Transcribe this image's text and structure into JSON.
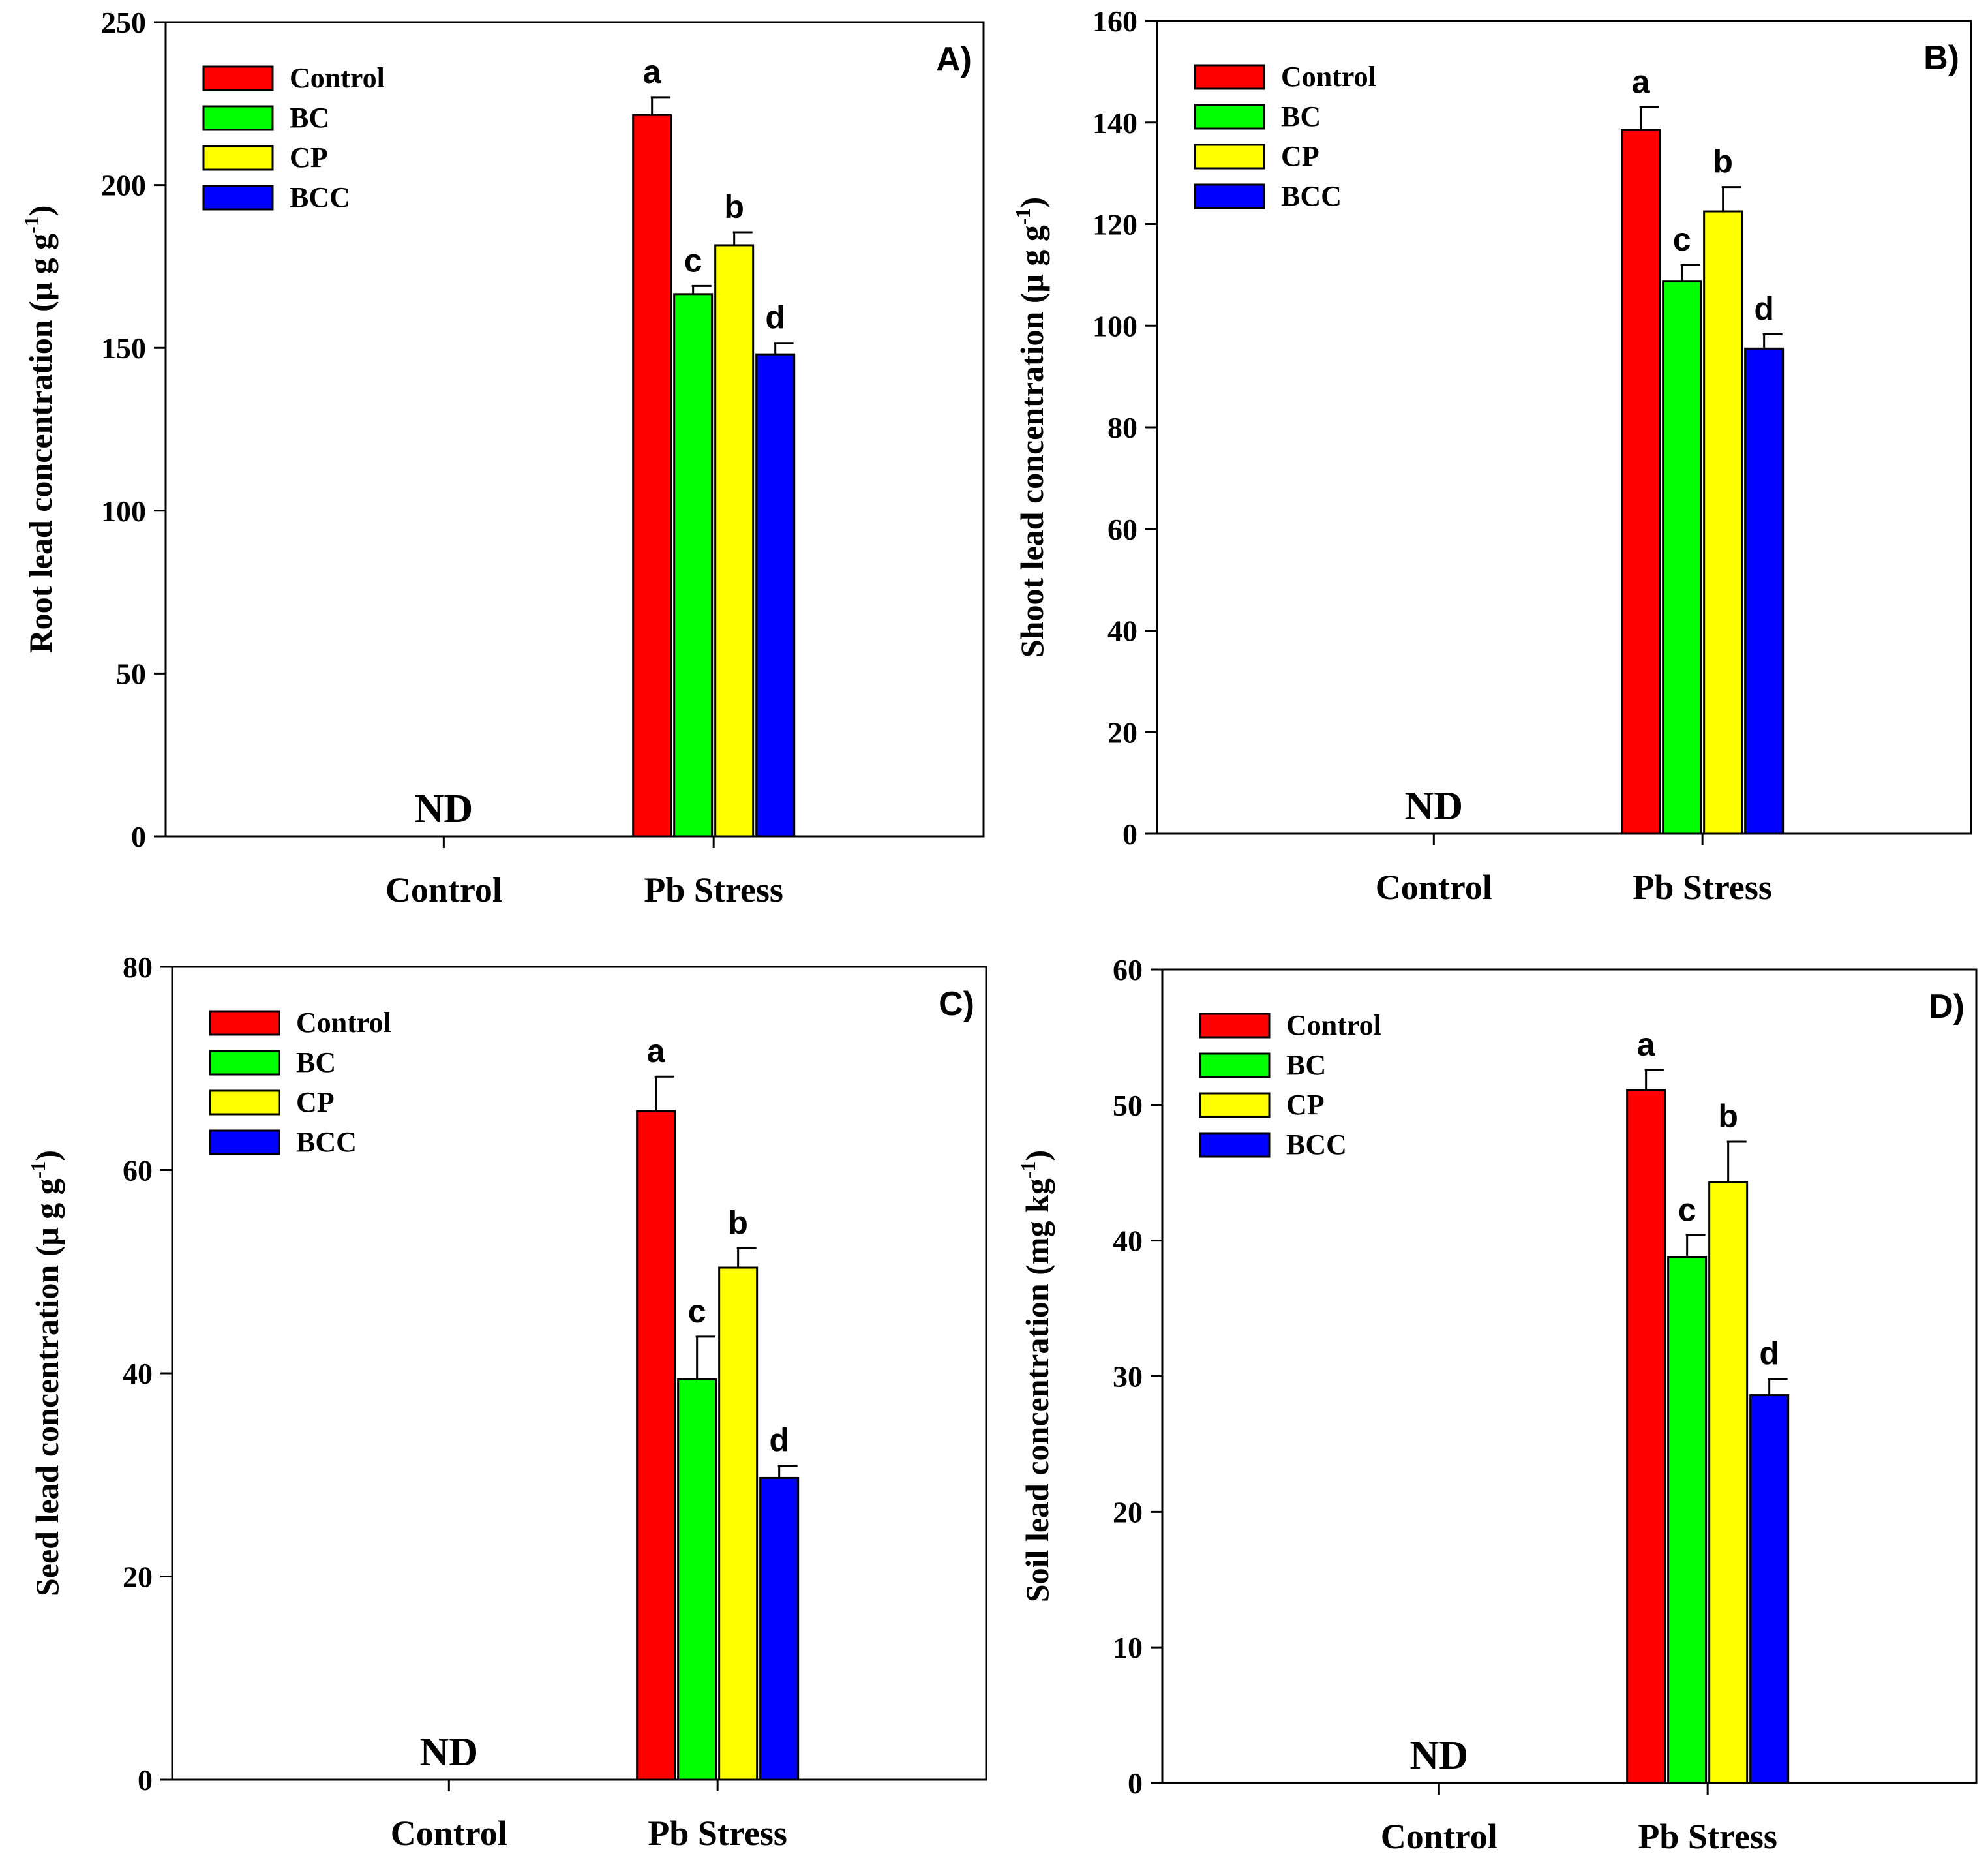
{
  "figure": {
    "caption": ""
  },
  "chart_data": [
    {
      "panel_label": "A)",
      "type": "bar",
      "ylabel_main": "Root lead concentration (μ g g",
      "ylabel_sup": "-1",
      "ylabel_end": ")",
      "ylim": [
        0,
        250
      ],
      "yticks": [
        0,
        50,
        100,
        150,
        200,
        250
      ],
      "categories": [
        "Control",
        "Pb Stress"
      ],
      "not_detected_label": "ND",
      "series": [
        {
          "name": "Control",
          "color": "#ff0000",
          "values": [
            null,
            221.5
          ],
          "errors": [
            null,
            5.5
          ],
          "letters": [
            "",
            "a"
          ]
        },
        {
          "name": "BC",
          "color": "#00ff00",
          "values": [
            null,
            166.5
          ],
          "errors": [
            null,
            2.5
          ],
          "letters": [
            "",
            "c"
          ]
        },
        {
          "name": "CP",
          "color": "#ffff00",
          "values": [
            null,
            181.5
          ],
          "errors": [
            null,
            4.0
          ],
          "letters": [
            "",
            "b"
          ]
        },
        {
          "name": "BCC",
          "color": "#0000ff",
          "values": [
            null,
            148.0
          ],
          "errors": [
            null,
            3.5
          ],
          "letters": [
            "",
            "d"
          ]
        }
      ]
    },
    {
      "panel_label": "B)",
      "type": "bar",
      "ylabel_main": "Shoot lead concentration (μ g g",
      "ylabel_sup": "-1",
      "ylabel_end": ")",
      "ylim": [
        0,
        160
      ],
      "yticks": [
        0,
        20,
        40,
        60,
        80,
        100,
        120,
        140,
        160
      ],
      "categories": [
        "Control",
        "Pb Stress"
      ],
      "not_detected_label": "ND",
      "series": [
        {
          "name": "Control",
          "color": "#ff0000",
          "values": [
            null,
            138.5
          ],
          "errors": [
            null,
            4.5
          ],
          "letters": [
            "",
            "a"
          ]
        },
        {
          "name": "BC",
          "color": "#00ff00",
          "values": [
            null,
            108.8
          ],
          "errors": [
            null,
            3.2
          ],
          "letters": [
            "",
            "c"
          ]
        },
        {
          "name": "CP",
          "color": "#ffff00",
          "values": [
            null,
            122.5
          ],
          "errors": [
            null,
            4.8
          ],
          "letters": [
            "",
            "b"
          ]
        },
        {
          "name": "BCC",
          "color": "#0000ff",
          "values": [
            null,
            95.5
          ],
          "errors": [
            null,
            2.8
          ],
          "letters": [
            "",
            "d"
          ]
        }
      ]
    },
    {
      "panel_label": "C)",
      "type": "bar",
      "ylabel_main": "Seed lead concentration (μ g g",
      "ylabel_sup": "-1",
      "ylabel_end": ")",
      "ylim": [
        0,
        80
      ],
      "yticks": [
        0,
        20,
        40,
        60,
        80
      ],
      "categories": [
        "Control",
        "Pb Stress"
      ],
      "not_detected_label": "ND",
      "series": [
        {
          "name": "Control",
          "color": "#ff0000",
          "values": [
            null,
            65.8
          ],
          "errors": [
            null,
            3.4
          ],
          "letters": [
            "",
            "a"
          ]
        },
        {
          "name": "BC",
          "color": "#00ff00",
          "values": [
            null,
            39.4
          ],
          "errors": [
            null,
            4.2
          ],
          "letters": [
            "",
            "c"
          ]
        },
        {
          "name": "CP",
          "color": "#ffff00",
          "values": [
            null,
            50.4
          ],
          "errors": [
            null,
            1.9
          ],
          "letters": [
            "",
            "b"
          ]
        },
        {
          "name": "BCC",
          "color": "#0000ff",
          "values": [
            null,
            29.7
          ],
          "errors": [
            null,
            1.2
          ],
          "letters": [
            "",
            "d"
          ]
        }
      ]
    },
    {
      "panel_label": "D)",
      "type": "bar",
      "ylabel_main": "Soil lead concentration (mg kg",
      "ylabel_sup": "-1",
      "ylabel_end": ")",
      "ylim": [
        0,
        60
      ],
      "yticks": [
        0,
        10,
        20,
        30,
        40,
        50,
        60
      ],
      "categories": [
        "Control",
        "Pb Stress"
      ],
      "not_detected_label": "ND",
      "series": [
        {
          "name": "Control",
          "color": "#ff0000",
          "values": [
            null,
            51.1
          ],
          "errors": [
            null,
            1.5
          ],
          "letters": [
            "",
            "a"
          ]
        },
        {
          "name": "BC",
          "color": "#00ff00",
          "values": [
            null,
            38.8
          ],
          "errors": [
            null,
            1.6
          ],
          "letters": [
            "",
            "c"
          ]
        },
        {
          "name": "CP",
          "color": "#ffff00",
          "values": [
            null,
            44.3
          ],
          "errors": [
            null,
            3.0
          ],
          "letters": [
            "",
            "b"
          ]
        },
        {
          "name": "BCC",
          "color": "#0000ff",
          "values": [
            null,
            28.6
          ],
          "errors": [
            null,
            1.2
          ],
          "letters": [
            "",
            "d"
          ]
        }
      ]
    }
  ]
}
